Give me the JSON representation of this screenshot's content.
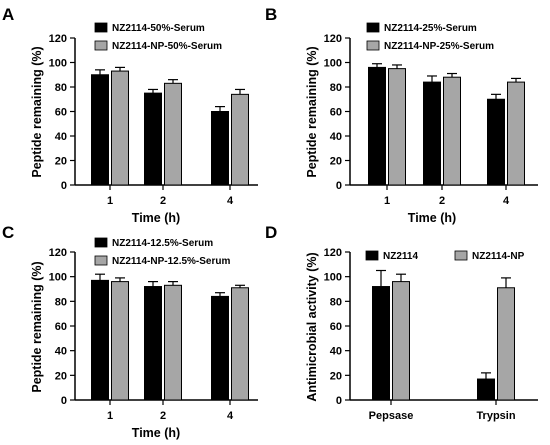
{
  "colors": {
    "series1": "#000000",
    "series2": "#a6a6a6",
    "axis": "#000000",
    "error_bar": "#000000"
  },
  "chart_data": [
    {
      "panel": "A",
      "type": "bar",
      "categories": [
        "1",
        "2",
        "4"
      ],
      "xlabel": "Time (h)",
      "ylabel": "Peptide remaining (%)",
      "ylim": [
        0,
        120
      ],
      "yticks": [
        0,
        20,
        40,
        60,
        80,
        100,
        120
      ],
      "legend_placement": "top",
      "series": [
        {
          "name": "NZ2114-50%-Serum",
          "values": [
            90,
            75,
            60
          ],
          "errors": [
            4,
            3,
            4
          ]
        },
        {
          "name": "NZ2114-NP-50%-Serum",
          "values": [
            93,
            83,
            74
          ],
          "errors": [
            3,
            3,
            4
          ]
        }
      ]
    },
    {
      "panel": "B",
      "type": "bar",
      "categories": [
        "1",
        "2",
        "4"
      ],
      "xlabel": "Time (h)",
      "ylabel": "Peptide remaining (%)",
      "ylim": [
        0,
        120
      ],
      "yticks": [
        0,
        20,
        40,
        60,
        80,
        100,
        120
      ],
      "legend_placement": "top",
      "series": [
        {
          "name": "NZ2114-25%-Serum",
          "values": [
            96,
            84,
            70
          ],
          "errors": [
            3,
            5,
            4
          ]
        },
        {
          "name": "NZ2114-NP-25%-Serum",
          "values": [
            95,
            88,
            84
          ],
          "errors": [
            3,
            3,
            3
          ]
        }
      ]
    },
    {
      "panel": "C",
      "type": "bar",
      "categories": [
        "1",
        "2",
        "4"
      ],
      "xlabel": "Time (h)",
      "ylabel": "Peptide remaining (%)",
      "ylim": [
        0,
        120
      ],
      "yticks": [
        0,
        20,
        40,
        60,
        80,
        100,
        120
      ],
      "legend_placement": "top",
      "series": [
        {
          "name": "NZ2114-12.5%-Serum",
          "values": [
            97,
            92,
            84
          ],
          "errors": [
            5,
            4,
            3
          ]
        },
        {
          "name": "NZ2114-NP-12.5%-Serum",
          "values": [
            96,
            93,
            91
          ],
          "errors": [
            3,
            3,
            2
          ]
        }
      ]
    },
    {
      "panel": "D",
      "type": "bar",
      "categories": [
        "Pepsase",
        "Trypsin"
      ],
      "xlabel": "",
      "ylabel": "Antimicrobial activity (%)",
      "ylim": [
        0,
        120
      ],
      "yticks": [
        0,
        20,
        40,
        60,
        80,
        100,
        120
      ],
      "legend_placement": "top",
      "series": [
        {
          "name": "NZ2114",
          "values": [
            92,
            17
          ],
          "errors": [
            13,
            5
          ]
        },
        {
          "name": "NZ2114-NP",
          "values": [
            96,
            91
          ],
          "errors": [
            6,
            8
          ]
        }
      ]
    }
  ]
}
